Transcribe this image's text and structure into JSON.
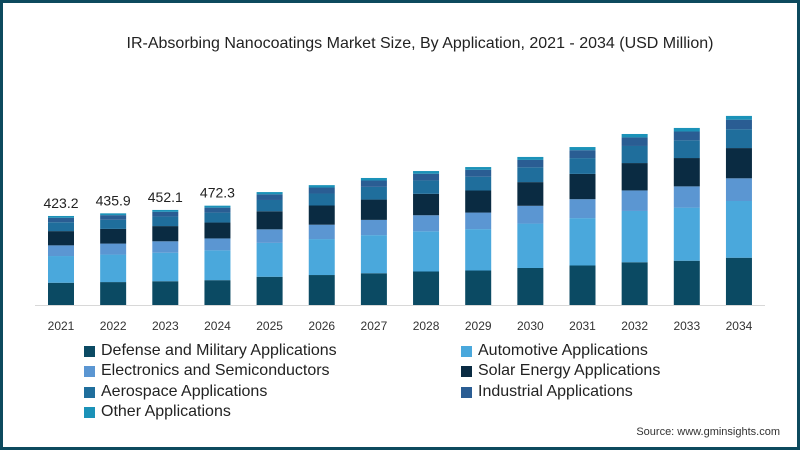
{
  "chart_data": {
    "type": "bar",
    "stacked": true,
    "title": "IR-Absorbing Nanocoatings Market Size, By Application, 2021 - 2034 (USD Million)",
    "xlabel": "",
    "ylabel": "",
    "ylim": [
      0,
      950
    ],
    "grid": false,
    "legend_position": "bottom",
    "categories": [
      "2021",
      "2022",
      "2023",
      "2024",
      "2025",
      "2026",
      "2027",
      "2028",
      "2029",
      "2030",
      "2031",
      "2032",
      "2033",
      "2034"
    ],
    "total_labels": [
      "423.2",
      "435.9",
      "452.1",
      "472.3"
    ],
    "series": [
      {
        "name": "Defense and Military Applications",
        "color": "#0b4a63",
        "values": [
          105.8,
          109.0,
          113.0,
          118.1,
          134.3,
          142.5,
          151.0,
          159.3,
          164.0,
          176.0,
          187.8,
          203.3,
          210.5,
          224.8
        ]
      },
      {
        "name": "Automotive Applications",
        "color": "#4aa8dc",
        "values": [
          127.0,
          130.8,
          135.6,
          141.7,
          161.1,
          171.0,
          181.2,
          191.1,
          196.8,
          211.2,
          225.3,
          243.9,
          252.6,
          269.7
        ]
      },
      {
        "name": "Electronics and Semiconductors",
        "color": "#5b96d2",
        "values": [
          50.8,
          52.3,
          54.3,
          56.7,
          64.4,
          68.4,
          72.5,
          76.4,
          78.7,
          84.5,
          90.1,
          97.6,
          101.0,
          107.9
        ]
      },
      {
        "name": "Solar Energy Applications",
        "color": "#0a2b42",
        "values": [
          67.7,
          69.7,
          72.3,
          75.6,
          85.9,
          91.2,
          96.6,
          101.9,
          105.0,
          112.6,
          120.2,
          130.1,
          134.7,
          143.8
        ]
      },
      {
        "name": "Aerospace Applications",
        "color": "#1f6e9c",
        "values": [
          42.3,
          43.6,
          45.2,
          47.2,
          53.7,
          57.0,
          60.4,
          63.7,
          65.6,
          70.4,
          75.1,
          81.3,
          84.2,
          89.9
        ]
      },
      {
        "name": "Industrial Applications",
        "color": "#2a5d93",
        "values": [
          21.2,
          21.8,
          22.6,
          23.6,
          26.9,
          28.5,
          30.2,
          31.9,
          32.8,
          35.2,
          37.6,
          40.7,
          42.1,
          45.0
        ]
      },
      {
        "name": "Other Applications",
        "color": "#1b92b8",
        "values": [
          8.5,
          8.7,
          9.0,
          9.4,
          10.7,
          11.4,
          12.1,
          12.7,
          13.1,
          14.1,
          15.0,
          16.3,
          16.8,
          18.0
        ]
      }
    ]
  },
  "source": "Source: www.gminsights.com"
}
